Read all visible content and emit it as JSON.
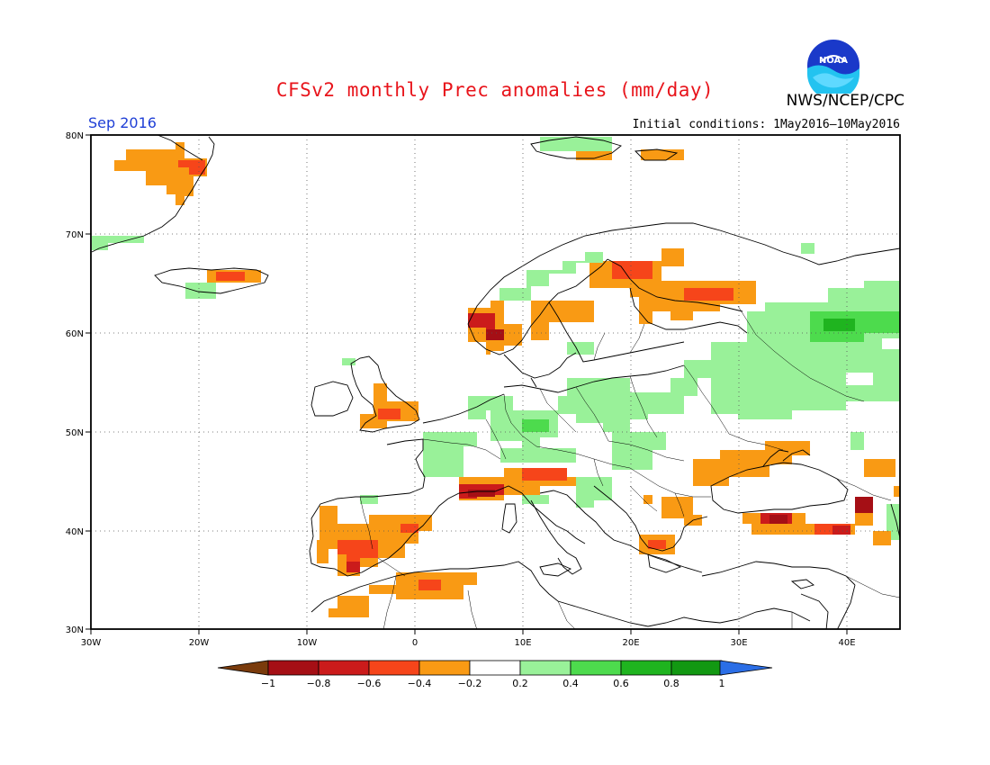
{
  "title": "CFSv2 monthly Prec anomalies (mm/day)",
  "org": "NWS/NCEP/CPC",
  "logo_text": "NOAA",
  "month": "Sep 2016",
  "initial_conditions": "Initial conditions: 1May2016—10May2016",
  "map": {
    "lon_range": [
      -30,
      45
    ],
    "lat_range": [
      30,
      80
    ],
    "gridlines": "dotted",
    "lat_ticks": [
      "30N",
      "40N",
      "50N",
      "60N",
      "70N",
      "80N"
    ],
    "lon_ticks": [
      "30W",
      "20W",
      "10W",
      "0",
      "10E",
      "20E",
      "30E",
      "40E"
    ]
  },
  "colorbar": {
    "labels": [
      "−1",
      "−0.8",
      "−0.6",
      "−0.4",
      "−0.2",
      "0.2",
      "0.4",
      "0.6",
      "0.8",
      "1"
    ],
    "colors": [
      "#7a3b0c",
      "#a50f15",
      "#cb1b1b",
      "#f6451a",
      "#f99a14",
      "#ffffff",
      "#99f199",
      "#4ddb4d",
      "#1fb41f",
      "#129812",
      "#2b6ee6"
    ]
  },
  "legend_colors": {
    "strong_negative": "#cb1b1b",
    "negative": "#f6451a",
    "weak_negative": "#f99a14",
    "very_negative": "#a50f15",
    "weak_positive": "#99f199",
    "positive": "#4ddb4d",
    "strong_positive": "#1fb41f"
  }
}
